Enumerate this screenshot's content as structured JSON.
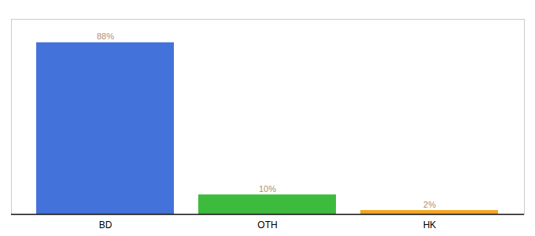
{
  "chart_data": {
    "type": "bar",
    "categories": [
      "BD",
      "OTH",
      "HK"
    ],
    "values": [
      88,
      10,
      2
    ],
    "value_labels": [
      "88%",
      "10%",
      "2%"
    ],
    "colors": [
      "#4472db",
      "#3dbb3d",
      "#f5a623"
    ],
    "ylim": [
      0,
      100
    ],
    "data_labels": true,
    "tick_labels": "x"
  }
}
